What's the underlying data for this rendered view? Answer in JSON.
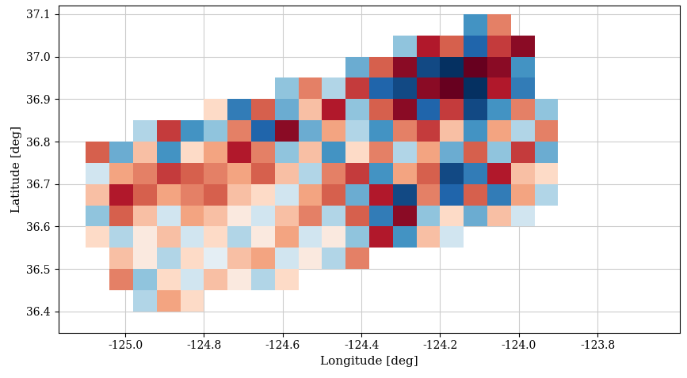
{
  "chart_data": {
    "type": "heatmap",
    "xlabel": "Longitude [deg]",
    "ylabel": "Latitude [deg]",
    "xlim": [
      -125.17,
      -123.59
    ],
    "ylim": [
      36.35,
      37.12
    ],
    "xticks": [
      -125.0,
      -124.8,
      -124.6,
      -124.4,
      -124.2,
      -124.0,
      -123.8
    ],
    "yticks": [
      36.4,
      36.5,
      36.6,
      36.7,
      36.8,
      36.9,
      37.0,
      37.1
    ],
    "grid": true,
    "color": "RdBu_r",
    "vlim": [
      -1,
      1
    ],
    "x": [
      -125.07,
      -125.01,
      -124.95,
      -124.89,
      -124.83,
      -124.77,
      -124.71,
      -124.65,
      -124.59,
      -124.53,
      -124.47,
      -124.41,
      -124.35,
      -124.29,
      -124.23,
      -124.17,
      -124.11,
      -124.05,
      -123.99,
      -123.93
    ],
    "y": [
      36.375,
      36.425,
      36.475,
      36.525,
      36.575,
      36.625,
      36.675,
      36.725,
      36.775,
      36.825,
      36.875,
      36.925,
      36.975,
      37.025,
      37.075
    ],
    "values": [
      [
        null,
        null,
        null,
        null,
        null,
        null,
        null,
        null,
        null,
        null,
        null,
        null,
        null,
        null,
        null,
        null,
        null,
        null,
        null,
        null
      ],
      [
        null,
        null,
        -0.3,
        0.4,
        0.2,
        null,
        null,
        null,
        null,
        null,
        null,
        null,
        null,
        null,
        null,
        null,
        null,
        null,
        null,
        null
      ],
      [
        null,
        0.5,
        -0.4,
        0.2,
        -0.2,
        0.3,
        0.1,
        -0.3,
        0.2,
        null,
        null,
        null,
        null,
        null,
        null,
        null,
        null,
        null,
        null,
        null
      ],
      [
        null,
        0.3,
        0.1,
        -0.3,
        0.2,
        -0.1,
        0.3,
        0.4,
        -0.2,
        0.1,
        -0.3,
        0.5,
        null,
        null,
        null,
        null,
        null,
        null,
        null,
        null
      ],
      [
        0.2,
        -0.3,
        0.1,
        0.3,
        -0.2,
        0.2,
        -0.3,
        0.1,
        0.4,
        -0.2,
        0.1,
        -0.4,
        0.8,
        -0.6,
        0.3,
        -0.2,
        null,
        null,
        null,
        null
      ],
      [
        -0.4,
        0.6,
        0.3,
        -0.2,
        0.4,
        0.3,
        0.1,
        -0.2,
        0.3,
        0.5,
        -0.3,
        0.6,
        -0.7,
        0.9,
        -0.4,
        0.2,
        -0.5,
        0.3,
        -0.2,
        null
      ],
      [
        0.3,
        0.8,
        0.6,
        0.4,
        0.5,
        0.6,
        0.3,
        0.2,
        -0.2,
        0.4,
        0.6,
        -0.5,
        0.8,
        -0.9,
        0.5,
        -0.8,
        0.6,
        -0.7,
        0.4,
        -0.3
      ],
      [
        -0.2,
        0.4,
        0.5,
        0.7,
        0.6,
        0.5,
        0.4,
        0.6,
        0.3,
        -0.3,
        0.5,
        0.7,
        -0.6,
        0.4,
        0.6,
        -0.9,
        -0.7,
        0.8,
        0.3,
        0.2
      ],
      [
        0.6,
        -0.5,
        0.3,
        -0.6,
        0.2,
        0.4,
        0.8,
        0.5,
        -0.4,
        0.3,
        -0.6,
        0.2,
        0.5,
        -0.3,
        0.4,
        -0.5,
        0.6,
        -0.4,
        0.7,
        -0.5
      ],
      [
        null,
        null,
        -0.3,
        0.7,
        -0.6,
        -0.4,
        0.5,
        -0.8,
        0.9,
        -0.5,
        0.4,
        -0.3,
        -0.6,
        0.5,
        0.7,
        0.3,
        -0.6,
        0.4,
        -0.3,
        0.5
      ],
      [
        null,
        null,
        null,
        null,
        null,
        0.2,
        -0.7,
        0.6,
        -0.5,
        0.3,
        0.8,
        -0.4,
        0.6,
        0.9,
        -0.8,
        0.7,
        -0.9,
        -0.6,
        0.5,
        -0.4
      ],
      [
        null,
        null,
        null,
        null,
        null,
        null,
        null,
        null,
        -0.4,
        0.5,
        -0.3,
        0.7,
        -0.8,
        -0.9,
        0.9,
        1.0,
        -1.0,
        0.8,
        -0.7,
        null
      ],
      [
        null,
        null,
        null,
        null,
        null,
        null,
        null,
        null,
        null,
        null,
        null,
        -0.5,
        0.6,
        0.9,
        -0.9,
        -1.0,
        1.0,
        0.9,
        -0.6,
        null
      ],
      [
        null,
        null,
        null,
        null,
        null,
        null,
        null,
        null,
        null,
        null,
        null,
        null,
        null,
        -0.4,
        0.8,
        0.6,
        -0.8,
        0.7,
        0.9,
        null
      ],
      [
        null,
        null,
        null,
        null,
        null,
        null,
        null,
        null,
        null,
        null,
        null,
        null,
        null,
        null,
        null,
        null,
        -0.6,
        0.5,
        null,
        null
      ]
    ]
  }
}
